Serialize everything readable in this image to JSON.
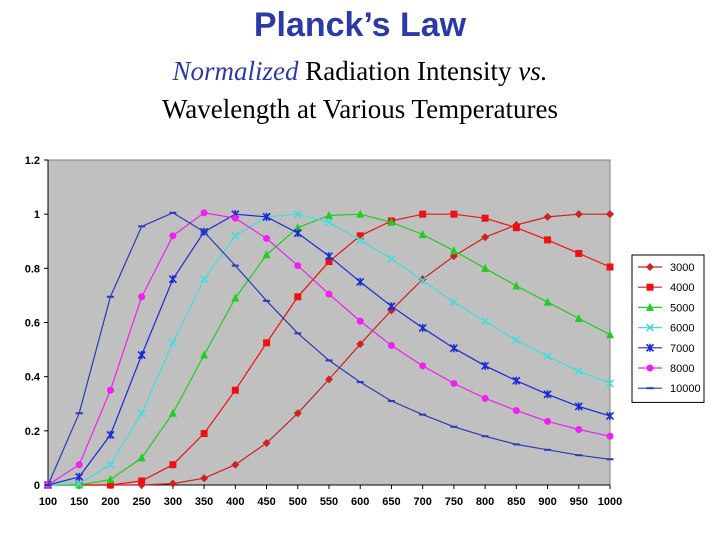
{
  "slide": {
    "title": "Planck’s Law",
    "subtitle_line1_italic": "Normalized",
    "subtitle_line1_rest": " Radiation Intensity ",
    "subtitle_line1_vs": "vs.",
    "subtitle_line2": "Wavelength at Various Temperatures"
  },
  "colors": {
    "plot_background": "#c0c0c0",
    "title": "#2b3aa8"
  },
  "chart_data": {
    "type": "line",
    "title": "",
    "xlabel": "",
    "ylabel": "",
    "grid": false,
    "legend_position": "right",
    "x": [
      100,
      150,
      200,
      250,
      300,
      350,
      400,
      450,
      500,
      550,
      600,
      650,
      700,
      750,
      800,
      850,
      900,
      950,
      1000
    ],
    "xlim": [
      100,
      1000
    ],
    "ylim": [
      0,
      1.2
    ],
    "yticks": [
      "0",
      "0.2",
      "0.4",
      "0.6",
      "0.8",
      "1",
      "1.2"
    ],
    "xticks": [
      "100",
      "150",
      "200",
      "250",
      "300",
      "350",
      "400",
      "450",
      "500",
      "550",
      "600",
      "650",
      "700",
      "750",
      "800",
      "850",
      "900",
      "950",
      "1000"
    ],
    "series": [
      {
        "name": "3000",
        "color": "#cc2222",
        "marker": "diamond",
        "values": [
          0.0,
          0.0,
          0.0,
          0.0,
          0.005,
          0.025,
          0.075,
          0.155,
          0.265,
          0.39,
          0.52,
          0.645,
          0.76,
          0.845,
          0.915,
          0.96,
          0.99,
          1.0,
          1.0
        ]
      },
      {
        "name": "4000",
        "color": "#ee1111",
        "marker": "square",
        "values": [
          0.0,
          0.0,
          0.0,
          0.015,
          0.075,
          0.19,
          0.35,
          0.525,
          0.695,
          0.825,
          0.92,
          0.975,
          1.0,
          1.0,
          0.985,
          0.95,
          0.905,
          0.855,
          0.805
        ]
      },
      {
        "name": "5000",
        "color": "#22cc22",
        "marker": "triangle",
        "values": [
          0.0,
          0.0,
          0.02,
          0.1,
          0.265,
          0.48,
          0.69,
          0.85,
          0.95,
          0.995,
          1.0,
          0.97,
          0.925,
          0.865,
          0.8,
          0.735,
          0.675,
          0.615,
          0.555
        ]
      },
      {
        "name": "6000",
        "color": "#44dddd",
        "marker": "x",
        "values": [
          0.0,
          0.005,
          0.075,
          0.265,
          0.525,
          0.76,
          0.92,
          0.99,
          1.0,
          0.97,
          0.905,
          0.835,
          0.755,
          0.675,
          0.605,
          0.535,
          0.475,
          0.42,
          0.375
        ]
      },
      {
        "name": "7000",
        "color": "#1a2ad6",
        "marker": "asterisk",
        "values": [
          0.0,
          0.03,
          0.185,
          0.48,
          0.76,
          0.935,
          1.0,
          0.99,
          0.93,
          0.845,
          0.75,
          0.66,
          0.58,
          0.505,
          0.44,
          0.385,
          0.335,
          0.29,
          0.255
        ]
      },
      {
        "name": "8000",
        "color": "#ee22ee",
        "marker": "circle",
        "values": [
          0.0,
          0.075,
          0.35,
          0.695,
          0.92,
          1.005,
          0.985,
          0.91,
          0.81,
          0.705,
          0.605,
          0.515,
          0.44,
          0.375,
          0.32,
          0.275,
          0.235,
          0.205,
          0.18
        ]
      },
      {
        "name": "10000",
        "color": "#2a3ab8",
        "marker": "dash",
        "values": [
          0.0,
          0.265,
          0.695,
          0.955,
          1.005,
          0.935,
          0.81,
          0.68,
          0.56,
          0.46,
          0.38,
          0.31,
          0.26,
          0.215,
          0.18,
          0.15,
          0.13,
          0.11,
          0.095
        ]
      }
    ]
  }
}
